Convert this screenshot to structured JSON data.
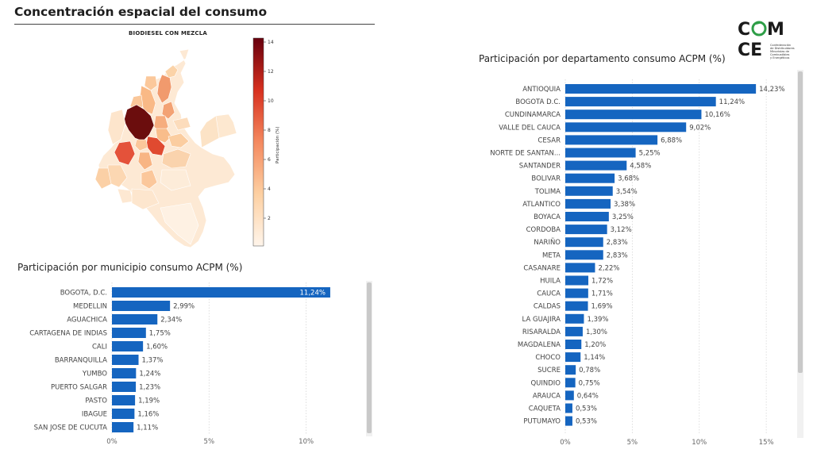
{
  "page_title": "Concentración espacial del consumo",
  "logo": {
    "text": "COMCE",
    "subtitle": "Confederación de Distribuidores Minoristas de Combustibles y Energéticos"
  },
  "map": {
    "title": "BIODIESEL CON MEZCLA",
    "colorbar_label": "Participación (%)",
    "colorbar_ticks": [
      "14",
      "12",
      "10",
      "8",
      "6",
      "4",
      "2"
    ],
    "colors": {
      "low": "#fdf0e0",
      "high": "#6b0d0d"
    }
  },
  "chart_data": [
    {
      "type": "bar",
      "orientation": "horizontal",
      "title": "Participación por municipio consumo ACPM (%)",
      "categories": [
        "BOGOTA, D.C.",
        "MEDELLIN",
        "AGUACHICA",
        "CARTAGENA DE INDIAS",
        "CALI",
        "BARRANQUILLA",
        "YUMBO",
        "PUERTO SALGAR",
        "PASTO",
        "IBAGUE",
        "SAN JOSE DE CUCUTA"
      ],
      "values": [
        11.24,
        2.99,
        2.34,
        1.75,
        1.6,
        1.37,
        1.24,
        1.23,
        1.19,
        1.16,
        1.11
      ],
      "value_labels": [
        "11,24%",
        "2,99%",
        "2,34%",
        "1,75%",
        "1,60%",
        "1,37%",
        "1,24%",
        "1,23%",
        "1,19%",
        "1,16%",
        "1,11%"
      ],
      "xlim": [
        0,
        13
      ],
      "xticks": [
        0,
        5,
        10
      ],
      "xtick_labels": [
        "0%",
        "5%",
        "10%"
      ],
      "grid": true,
      "bar_color": "#1565c0"
    },
    {
      "type": "bar",
      "orientation": "horizontal",
      "title": "Participación por departamento consumo ACPM (%)",
      "categories": [
        "ANTIOQUIA",
        "BOGOTA D.C.",
        "CUNDINAMARCA",
        "VALLE DEL CAUCA",
        "CESAR",
        "NORTE DE SANTAN...",
        "SANTANDER",
        "BOLIVAR",
        "TOLIMA",
        "ATLANTICO",
        "BOYACA",
        "CORDOBA",
        "NARIÑO",
        "META",
        "CASANARE",
        "HUILA",
        "CAUCA",
        "CALDAS",
        "LA GUAJIRA",
        "RISARALDA",
        "MAGDALENA",
        "CHOCO",
        "SUCRE",
        "QUINDIO",
        "ARAUCA",
        "CAQUETA",
        "PUTUMAYO"
      ],
      "values": [
        14.23,
        11.24,
        10.16,
        9.02,
        6.88,
        5.25,
        4.58,
        3.68,
        3.54,
        3.38,
        3.25,
        3.12,
        2.83,
        2.83,
        2.22,
        1.72,
        1.71,
        1.69,
        1.39,
        1.3,
        1.2,
        1.14,
        0.78,
        0.75,
        0.64,
        0.53,
        0.53
      ],
      "value_labels": [
        "14,23%",
        "11,24%",
        "10,16%",
        "9,02%",
        "6,88%",
        "5,25%",
        "4,58%",
        "3,68%",
        "3,54%",
        "3,38%",
        "3,25%",
        "3,12%",
        "2,83%",
        "2,83%",
        "2,22%",
        "1,72%",
        "1,71%",
        "1,69%",
        "1,39%",
        "1,30%",
        "1,20%",
        "1,14%",
        "0,78%",
        "0,75%",
        "0,64%",
        "0,53%",
        "0,53%"
      ],
      "xlim": [
        0,
        16
      ],
      "xticks": [
        0,
        5,
        10,
        15
      ],
      "xtick_labels": [
        "0%",
        "5%",
        "10%",
        "15%"
      ],
      "grid": true,
      "bar_color": "#1565c0"
    }
  ]
}
